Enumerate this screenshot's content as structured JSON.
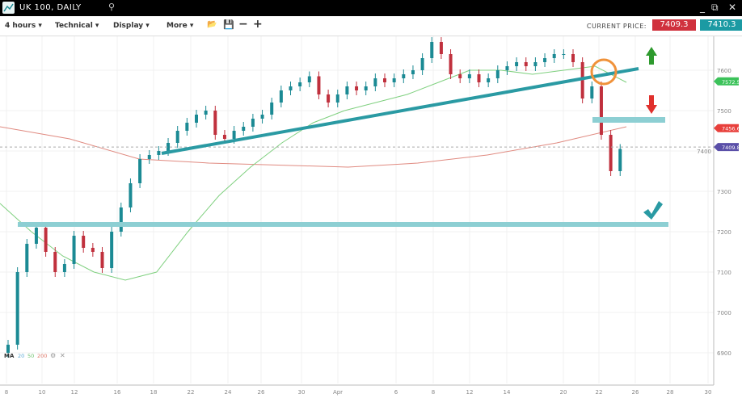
{
  "window": {
    "title": "UK 100, DAILY",
    "search_icon": "search-icon",
    "controls": [
      "minimize-icon",
      "popout-icon",
      "close-icon"
    ]
  },
  "toolbar": {
    "interval": "4 hours ▾",
    "technical": "Technical ▾",
    "display": "Display ▾",
    "more": "More ▾",
    "current_price_label": "CURRENT PRICE:",
    "sell_price": "7409.3",
    "buy_price": "7410.3",
    "sell_color": "#d0313d",
    "buy_color": "#1b9aa3"
  },
  "chart_data": {
    "type": "candlestick",
    "instrument": "UK 100",
    "ylim": [
      6850,
      7700
    ],
    "y_ticks": [
      6900,
      7000,
      7100,
      7200,
      7300,
      7400,
      7500,
      7600
    ],
    "x_ticks": [
      "8",
      "10",
      "12",
      "16",
      "18",
      "22",
      "24",
      "26",
      "30",
      "Apr",
      "6",
      "8",
      "12",
      "14",
      "20",
      "22",
      "26",
      "28",
      "30"
    ],
    "closes": [
      6920,
      7100,
      7170,
      7210,
      7150,
      7100,
      7120,
      7190,
      7160,
      7150,
      7110,
      7200,
      7260,
      7320,
      7380,
      7390,
      7400,
      7420,
      7450,
      7470,
      7490,
      7500,
      7440,
      7430,
      7450,
      7460,
      7480,
      7490,
      7520,
      7550,
      7560,
      7570,
      7585,
      7540,
      7520,
      7540,
      7560,
      7550,
      7560,
      7580,
      7570,
      7580,
      7590,
      7600,
      7630,
      7670,
      7640,
      7590,
      7580,
      7590,
      7570,
      7580,
      7600,
      7610,
      7620,
      7610,
      7620,
      7630,
      7640,
      7640,
      7620,
      7530,
      7560,
      7440,
      7350,
      7405
    ],
    "ma50": [
      7270,
      7200,
      7140,
      7100,
      7080,
      7100,
      7200,
      7290,
      7360,
      7420,
      7470,
      7500,
      7520,
      7540,
      7570,
      7600,
      7600,
      7590,
      7600,
      7610,
      7570
    ],
    "ma200": [
      7460,
      7430,
      7380,
      7370,
      7365,
      7360,
      7370,
      7390,
      7420,
      7460
    ],
    "price_labels": [
      {
        "value": "7572.5",
        "color": "#3cc25a"
      },
      {
        "value": "7456.6",
        "color": "#e8403c"
      },
      {
        "value": "7409.8",
        "color": "#5a4fa8"
      }
    ],
    "legend": {
      "label": "MA",
      "periods": [
        "20",
        "50",
        "200"
      ],
      "colors": [
        "#5aa9d6",
        "#6cc26c",
        "#e07a6c"
      ]
    },
    "up_color": "#1b8a94",
    "down_color": "#c0303d"
  }
}
